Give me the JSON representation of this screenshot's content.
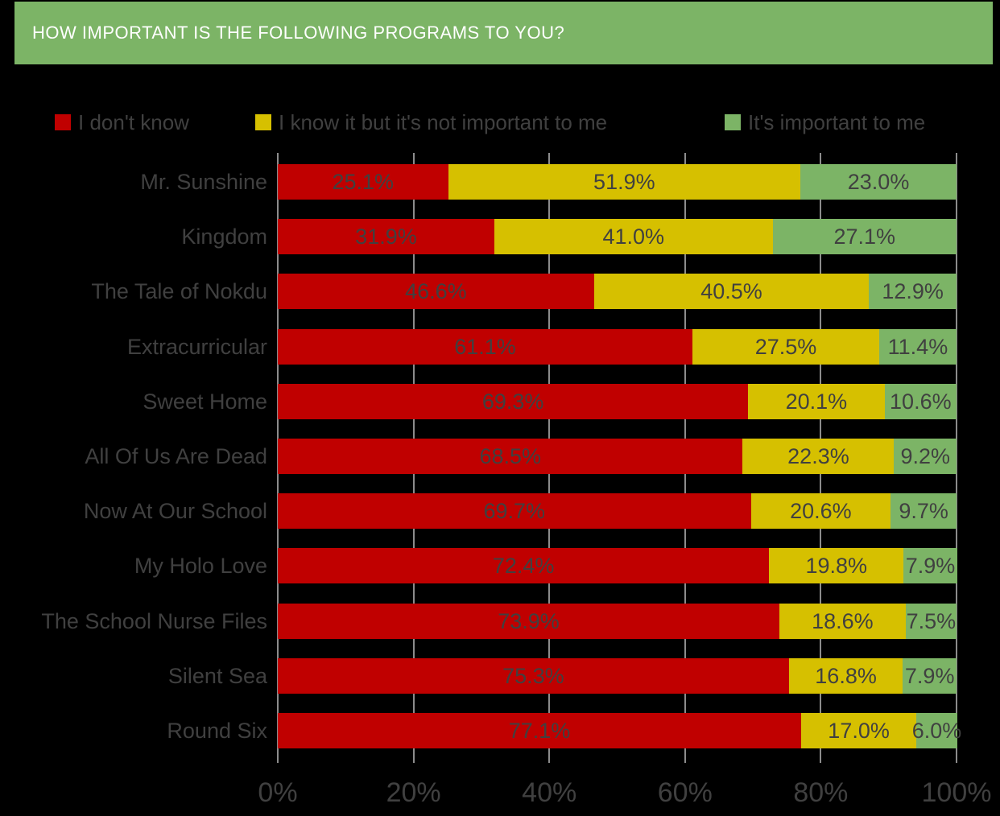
{
  "header": {
    "title": "HOW IMPORTANT IS THE FOLLOWING PROGRAMS TO YOU?",
    "bg_color": "#7CB466",
    "text_color": "#FFFFFF"
  },
  "colors": {
    "background": "#000000",
    "text": "#404040",
    "gridline": "#8C8C8C"
  },
  "chart_data": {
    "type": "bar",
    "orientation": "horizontal",
    "stacked": true,
    "title": "HOW IMPORTANT IS THE FOLLOWING PROGRAMS TO YOU?",
    "legend_position": "top",
    "grid": true,
    "xlim": [
      0,
      100
    ],
    "x_ticks": [
      "0%",
      "20%",
      "40%",
      "60%",
      "80%",
      "100%"
    ],
    "x_tick_values": [
      0,
      20,
      40,
      60,
      80,
      100
    ],
    "value_label_suffix": "%",
    "categories": [
      "Mr. Sunshine",
      "Kingdom",
      "The Tale of Nokdu",
      "Extracurricular",
      "Sweet Home",
      "All Of Us Are Dead",
      "Now At Our School",
      "My Holo Love",
      "The School Nurse Files",
      "Silent Sea",
      "Round Six"
    ],
    "series": [
      {
        "name": "I don't know",
        "color": "#C00000",
        "values": [
          25.1,
          31.9,
          46.6,
          61.1,
          69.3,
          68.5,
          69.7,
          72.4,
          73.9,
          75.3,
          77.1
        ]
      },
      {
        "name": "I know it but it's not important to me",
        "color": "#D6C000",
        "values": [
          51.9,
          41.0,
          40.5,
          27.5,
          20.1,
          22.3,
          20.6,
          19.8,
          18.6,
          16.8,
          17.0
        ]
      },
      {
        "name": "It's important to me",
        "color": "#7CB466",
        "values": [
          23.0,
          27.1,
          12.9,
          11.4,
          10.6,
          9.2,
          9.7,
          7.9,
          7.5,
          7.9,
          6.0
        ]
      }
    ]
  }
}
